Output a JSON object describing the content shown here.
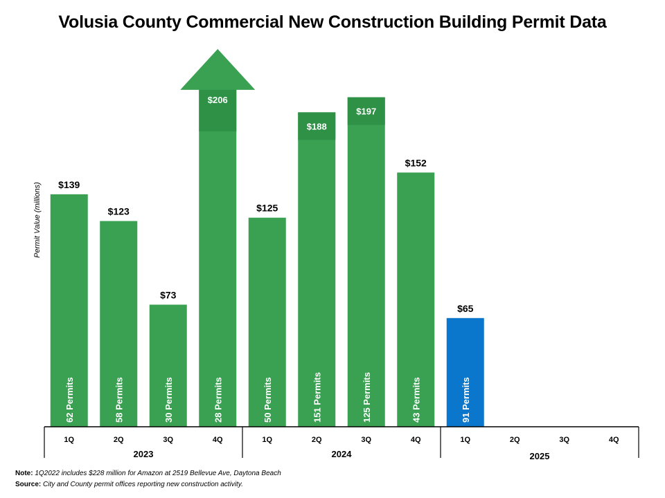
{
  "chart_data": {
    "type": "bar",
    "title": "Volusia County Commercial New Construction Building Permit Data",
    "ylabel": "Permit Value (millions)",
    "ylim": [
      0,
      220
    ],
    "years": [
      "2023",
      "2024",
      "2025"
    ],
    "quarters": [
      "1Q",
      "2Q",
      "3Q",
      "4Q"
    ],
    "bars": [
      {
        "year": "2023",
        "quarter": "1Q",
        "value": 139,
        "label": "$139",
        "permits": "62 Permits"
      },
      {
        "year": "2023",
        "quarter": "2Q",
        "value": 123,
        "label": "$123",
        "permits": "58 Permits"
      },
      {
        "year": "2023",
        "quarter": "3Q",
        "value": 73,
        "label": "$73",
        "permits": "30 Permits"
      },
      {
        "year": "2023",
        "quarter": "4Q",
        "value": 206,
        "label": "$206",
        "permits": "28 Permits",
        "arrow": true
      },
      {
        "year": "2024",
        "quarter": "1Q",
        "value": 125,
        "label": "$125",
        "permits": "50 Permits"
      },
      {
        "year": "2024",
        "quarter": "2Q",
        "value": 188,
        "label": "$188",
        "permits": "151 Permits"
      },
      {
        "year": "2024",
        "quarter": "3Q",
        "value": 197,
        "label": "$197",
        "permits": "125 Permits"
      },
      {
        "year": "2024",
        "quarter": "4Q",
        "value": 152,
        "label": "$152",
        "permits": "43 Permits"
      },
      {
        "year": "2025",
        "quarter": "1Q",
        "value": 65,
        "label": "$65",
        "permits": "91 Permits",
        "current": true
      },
      {
        "year": "2025",
        "quarter": "2Q",
        "value": null
      },
      {
        "year": "2025",
        "quarter": "3Q",
        "value": null
      },
      {
        "year": "2025",
        "quarter": "4Q",
        "value": null
      }
    ],
    "colors": {
      "bar": "#3aa153",
      "bar_dark": "#2e9146",
      "current": "#0b77cc"
    }
  },
  "notes": {
    "note_label": "Note:",
    "note_text": "1Q2022 includes $228 million for Amazon at 2519 Bellevue Ave, Daytona Beach",
    "source_label": "Source:",
    "source_text": "City and County permit offices reporting new construction activity."
  }
}
